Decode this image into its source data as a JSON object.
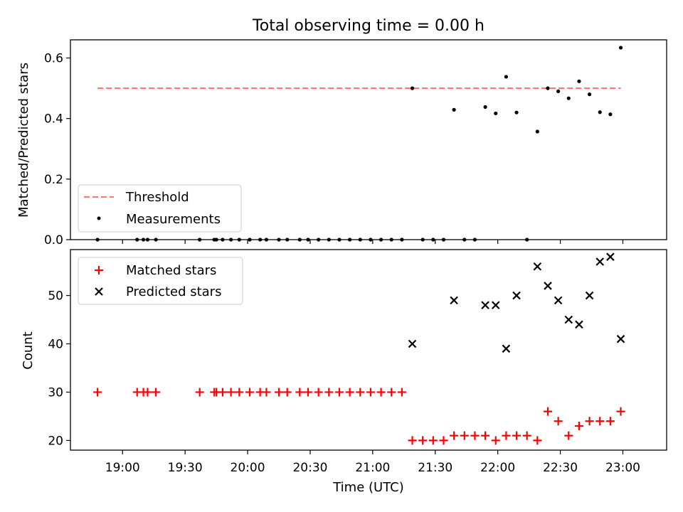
{
  "figure": {
    "title": "Total observing time = 0.00 h"
  },
  "chart_data": [
    {
      "type": "scatter",
      "panel": "top",
      "title": "Total observing time = 0.00 h",
      "ylabel": "Matched/Predicted stars",
      "xlabel": "",
      "xlim": [
        "18:35",
        "23:21"
      ],
      "ylim": [
        0,
        0.66
      ],
      "yticks": [
        0.0,
        0.2,
        0.4,
        0.6
      ],
      "ytick_labels": [
        "0.0",
        "0.2",
        "0.4",
        "0.6"
      ],
      "legend_position": "lower-left",
      "threshold": {
        "name": "Threshold",
        "value": 0.5,
        "x_range": [
          "18:48",
          "22:59"
        ],
        "color": "#ff7777",
        "style": "dashed"
      },
      "series": [
        {
          "name": "Measurements",
          "marker": "dot",
          "color": "#000000",
          "points": [
            [
              "18:48",
              0.0
            ],
            [
              "19:07",
              0.0
            ],
            [
              "19:10",
              0.0
            ],
            [
              "19:12",
              0.0
            ],
            [
              "19:16",
              0.0
            ],
            [
              "19:37",
              0.0
            ],
            [
              "19:44",
              0.0
            ],
            [
              "19:45",
              0.0
            ],
            [
              "19:48",
              0.0
            ],
            [
              "19:52",
              0.0
            ],
            [
              "19:56",
              0.0
            ],
            [
              "20:01",
              0.0
            ],
            [
              "20:06",
              0.0
            ],
            [
              "20:09",
              0.0
            ],
            [
              "20:15",
              0.0
            ],
            [
              "20:19",
              0.0
            ],
            [
              "20:25",
              0.0
            ],
            [
              "20:29",
              0.0
            ],
            [
              "20:34",
              0.0
            ],
            [
              "20:39",
              0.0
            ],
            [
              "20:44",
              0.0
            ],
            [
              "20:49",
              0.0
            ],
            [
              "20:54",
              0.0
            ],
            [
              "20:59",
              0.0
            ],
            [
              "21:04",
              0.0
            ],
            [
              "21:09",
              0.0
            ],
            [
              "21:14",
              0.0
            ],
            [
              "21:19",
              0.5
            ],
            [
              "21:24",
              0.0
            ],
            [
              "21:29",
              0.0
            ],
            [
              "21:34",
              0.0
            ],
            [
              "21:39",
              0.429
            ],
            [
              "21:44",
              0.0
            ],
            [
              "21:49",
              0.0
            ],
            [
              "21:54",
              0.438
            ],
            [
              "21:59",
              0.417
            ],
            [
              "22:04",
              0.538
            ],
            [
              "22:09",
              0.42
            ],
            [
              "22:14",
              0.0
            ],
            [
              "22:19",
              0.357
            ],
            [
              "22:24",
              0.5
            ],
            [
              "22:29",
              0.49
            ],
            [
              "22:34",
              0.467
            ],
            [
              "22:39",
              0.523
            ],
            [
              "22:44",
              0.48
            ],
            [
              "22:49",
              0.421
            ],
            [
              "22:54",
              0.414
            ],
            [
              "22:59",
              0.634
            ]
          ]
        }
      ]
    },
    {
      "type": "scatter",
      "panel": "bottom",
      "title": "",
      "xlabel": "Time (UTC)",
      "ylabel": "Count",
      "xlim": [
        "18:35",
        "23:21"
      ],
      "ylim": [
        18,
        59.5
      ],
      "xticks": [
        "19:00",
        "19:30",
        "20:00",
        "20:30",
        "21:00",
        "21:30",
        "22:00",
        "22:30",
        "23:00"
      ],
      "yticks": [
        20,
        30,
        40,
        50
      ],
      "ytick_labels": [
        "20",
        "30",
        "40",
        "50"
      ],
      "legend_position": "upper-left",
      "series": [
        {
          "name": "Matched stars",
          "marker": "plus",
          "color": "#ff0000",
          "points": [
            [
              "18:48",
              30
            ],
            [
              "19:07",
              30
            ],
            [
              "19:10",
              30
            ],
            [
              "19:12",
              30
            ],
            [
              "19:16",
              30
            ],
            [
              "19:37",
              30
            ],
            [
              "19:44",
              30
            ],
            [
              "19:45",
              30
            ],
            [
              "19:48",
              30
            ],
            [
              "19:52",
              30
            ],
            [
              "19:56",
              30
            ],
            [
              "20:01",
              30
            ],
            [
              "20:06",
              30
            ],
            [
              "20:09",
              30
            ],
            [
              "20:15",
              30
            ],
            [
              "20:19",
              30
            ],
            [
              "20:25",
              30
            ],
            [
              "20:29",
              30
            ],
            [
              "20:34",
              30
            ],
            [
              "20:39",
              30
            ],
            [
              "20:44",
              30
            ],
            [
              "20:49",
              30
            ],
            [
              "20:54",
              30
            ],
            [
              "20:59",
              30
            ],
            [
              "21:04",
              30
            ],
            [
              "21:09",
              30
            ],
            [
              "21:14",
              30
            ],
            [
              "21:19",
              20
            ],
            [
              "21:24",
              20
            ],
            [
              "21:29",
              20
            ],
            [
              "21:34",
              20
            ],
            [
              "21:39",
              21
            ],
            [
              "21:44",
              21
            ],
            [
              "21:49",
              21
            ],
            [
              "21:54",
              21
            ],
            [
              "21:59",
              20
            ],
            [
              "22:04",
              21
            ],
            [
              "22:09",
              21
            ],
            [
              "22:14",
              21
            ],
            [
              "22:19",
              20
            ],
            [
              "22:24",
              26
            ],
            [
              "22:29",
              24
            ],
            [
              "22:34",
              21
            ],
            [
              "22:39",
              23
            ],
            [
              "22:44",
              24
            ],
            [
              "22:49",
              24
            ],
            [
              "22:54",
              24
            ],
            [
              "22:59",
              26
            ]
          ]
        },
        {
          "name": "Predicted stars",
          "marker": "x",
          "color": "#000000",
          "points": [
            [
              "21:19",
              40
            ],
            [
              "21:39",
              49
            ],
            [
              "21:54",
              48
            ],
            [
              "21:59",
              48
            ],
            [
              "22:04",
              39
            ],
            [
              "22:09",
              50
            ],
            [
              "22:19",
              56
            ],
            [
              "22:24",
              52
            ],
            [
              "22:29",
              49
            ],
            [
              "22:34",
              45
            ],
            [
              "22:39",
              44
            ],
            [
              "22:44",
              50
            ],
            [
              "22:49",
              57
            ],
            [
              "22:54",
              58
            ],
            [
              "22:59",
              41
            ]
          ]
        }
      ]
    }
  ]
}
